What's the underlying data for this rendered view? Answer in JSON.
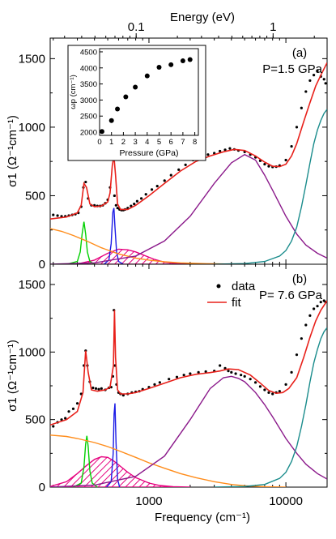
{
  "chart_data": [
    {
      "type": "line",
      "panel_label": "(a)",
      "condition": "P=1.5 GPa",
      "top_axis": {
        "label": "Energy (eV)",
        "scale": "log",
        "ticks": [
          {
            "v": 0.1,
            "label": "0.1"
          },
          {
            "v": 1,
            "label": "1"
          }
        ]
      },
      "xlabel": "",
      "xscale": "log",
      "xlim": [
        190,
        20000
      ],
      "ylabel": "σ1 (Ω⁻¹cm⁻¹)",
      "ylim": [
        0,
        1650
      ],
      "yticks": [
        {
          "v": 0,
          "label": "0"
        },
        {
          "v": 500,
          "label": "500"
        },
        {
          "v": 1000,
          "label": "1000"
        },
        {
          "v": 1500,
          "label": "1500"
        }
      ],
      "data_points": {
        "x": [
          200,
          215,
          230,
          245,
          260,
          275,
          290,
          305,
          320,
          332,
          345,
          360,
          380,
          400,
          420,
          440,
          460,
          480,
          500,
          520,
          540,
          560,
          575,
          590,
          610,
          630,
          650,
          670,
          700,
          740,
          780,
          820,
          880,
          950,
          1050,
          1150,
          1300,
          1450,
          1650,
          1850,
          2100,
          2400,
          2700,
          3000,
          3300,
          3600,
          3900,
          4200,
          4500,
          5000,
          5500,
          6000,
          6500,
          7000,
          7500,
          8000,
          8500,
          9000,
          10000,
          11000,
          12000,
          13000,
          14000,
          15000,
          16000,
          17000,
          18000,
          19000,
          19500
        ],
        "y": [
          360,
          355,
          350,
          350,
          355,
          360,
          365,
          375,
          420,
          560,
          600,
          480,
          430,
          430,
          425,
          425,
          430,
          445,
          470,
          560,
          780,
          500,
          430,
          410,
          400,
          395,
          395,
          400,
          410,
          425,
          440,
          460,
          480,
          510,
          545,
          570,
          610,
          650,
          690,
          725,
          760,
          780,
          800,
          810,
          825,
          835,
          845,
          838,
          830,
          820,
          800,
          780,
          755,
          730,
          715,
          710,
          712,
          720,
          760,
          860,
          1000,
          1140,
          1260,
          1340,
          1380,
          1410,
          1370,
          1350,
          1320
        ]
      },
      "series": [
        {
          "name": "fit",
          "color": "#e8201a",
          "x": [
            190,
            250,
            300,
            320,
            335,
            350,
            370,
            400,
            450,
            500,
            520,
            540,
            555,
            570,
            590,
            620,
            700,
            800,
            1000,
            1300,
            1700,
            2200,
            2800,
            3500,
            4200,
            5000,
            6000,
            7000,
            8000,
            9000,
            10000,
            11000,
            12000,
            13500,
            15000,
            16500,
            18000,
            20000
          ],
          "y": [
            330,
            345,
            375,
            430,
            590,
            560,
            440,
            420,
            425,
            455,
            520,
            720,
            790,
            650,
            440,
            400,
            400,
            430,
            500,
            590,
            680,
            750,
            790,
            820,
            838,
            830,
            790,
            745,
            715,
            712,
            730,
            790,
            880,
            1040,
            1180,
            1300,
            1380,
            1470
          ]
        },
        {
          "name": "",
          "color": "#ff8c1a",
          "x": [
            190,
            230,
            280,
            350,
            450,
            600,
            800,
            1000,
            1300,
            1700,
            2200,
            3000,
            4000,
            5000
          ],
          "y": [
            260,
            240,
            210,
            170,
            120,
            75,
            45,
            30,
            18,
            10,
            6,
            3,
            1,
            0
          ]
        },
        {
          "name": "",
          "color": "#00d000",
          "x": [
            250,
            300,
            315,
            325,
            335,
            345,
            355,
            370,
            400
          ],
          "y": [
            0,
            20,
            90,
            220,
            310,
            220,
            90,
            20,
            0
          ]
        },
        {
          "name": "",
          "color": "#1a1ae6",
          "x": [
            470,
            510,
            530,
            545,
            555,
            565,
            580,
            600,
            650
          ],
          "y": [
            0,
            30,
            150,
            380,
            410,
            270,
            90,
            20,
            0
          ]
        },
        {
          "name": "",
          "color": "#e6007e",
          "x": [
            300,
            400,
            500,
            600,
            700,
            800,
            950,
            1100,
            1300,
            1600,
            2000
          ],
          "y": [
            2,
            30,
            80,
            110,
            105,
            90,
            60,
            35,
            15,
            5,
            0
          ]
        },
        {
          "name": "",
          "color": "#8b1a8b",
          "x": [
            190,
            400,
            800,
            1300,
            2000,
            3000,
            4000,
            5000,
            6000,
            7000,
            8000,
            10000,
            12000,
            14000,
            17000,
            20000
          ],
          "y": [
            0,
            10,
            60,
            170,
            350,
            590,
            740,
            800,
            760,
            650,
            540,
            350,
            220,
            140,
            80,
            45
          ]
        },
        {
          "name": "",
          "color": "#1a8c8c",
          "x": [
            3000,
            5000,
            7000,
            9000,
            10000,
            11000,
            12000,
            13000,
            14000,
            15000,
            16000,
            17000,
            18000,
            19000,
            20000
          ],
          "y": [
            0,
            5,
            20,
            60,
            100,
            170,
            270,
            420,
            580,
            740,
            880,
            980,
            1050,
            1100,
            1130
          ]
        }
      ],
      "inset": {
        "xlabel": "Pressure (GPa)",
        "ylabel": "ωp (cm⁻¹)",
        "xlim": [
          0,
          8.3
        ],
        "ylim": [
          1900,
          4600
        ],
        "xticks": [
          0,
          1,
          2,
          3,
          4,
          5,
          6,
          7,
          8
        ],
        "yticks": [
          2000,
          2500,
          3000,
          3500,
          4000,
          4500
        ],
        "x": [
          0.2,
          1.0,
          1.5,
          2.2,
          3.0,
          4.0,
          5.0,
          6.0,
          7.0,
          7.6
        ],
        "y": [
          2020,
          2360,
          2720,
          3100,
          3400,
          3750,
          4020,
          4100,
          4220,
          4260
        ]
      }
    },
    {
      "type": "line",
      "panel_label": "(b)",
      "condition": "P= 7.6 GPa",
      "xlabel": "Frequency (cm⁻¹)",
      "xscale": "log",
      "xlim": [
        190,
        20000
      ],
      "xticks": [
        {
          "v": 1000,
          "label": "1000"
        },
        {
          "v": 10000,
          "label": "10000"
        }
      ],
      "ylabel": "σ1 (Ω⁻¹cm⁻¹)",
      "ylim": [
        0,
        1650
      ],
      "yticks": [
        {
          "v": 0,
          "label": "0"
        },
        {
          "v": 500,
          "label": "500"
        },
        {
          "v": 1000,
          "label": "1000"
        },
        {
          "v": 1500,
          "label": "1500"
        }
      ],
      "legend": {
        "position": "top-center",
        "entries": [
          "data",
          "fit"
        ]
      },
      "data_points": {
        "x": [
          200,
          215,
          230,
          245,
          260,
          280,
          300,
          320,
          335,
          345,
          355,
          370,
          390,
          410,
          430,
          450,
          480,
          510,
          530,
          545,
          555,
          565,
          580,
          600,
          620,
          650,
          700,
          750,
          800,
          850,
          900,
          1000,
          1100,
          1200,
          1400,
          1600,
          1800,
          2000,
          2300,
          2600,
          3000,
          3300,
          3600,
          3800,
          4000,
          4300,
          4700,
          5000,
          5500,
          6000,
          6500,
          7000,
          7500,
          8000,
          8500,
          9000,
          10000,
          11000,
          12000,
          13000,
          14000,
          15000,
          16000,
          17000,
          18000,
          19000,
          19500
        ],
        "y": [
          450,
          480,
          500,
          510,
          560,
          580,
          620,
          690,
          900,
          1010,
          900,
          780,
          735,
          730,
          725,
          730,
          720,
          735,
          740,
          820,
          1310,
          900,
          760,
          700,
          690,
          680,
          690,
          700,
          705,
          710,
          725,
          740,
          760,
          775,
          800,
          815,
          830,
          840,
          850,
          855,
          860,
          900,
          880,
          860,
          850,
          840,
          830,
          820,
          800,
          775,
          745,
          720,
          700,
          690,
          700,
          710,
          760,
          850,
          980,
          1100,
          1200,
          1270,
          1320,
          1340,
          1370,
          1380,
          1370
        ]
      },
      "series": [
        {
          "name": "fit",
          "color": "#e8201a",
          "x": [
            190,
            250,
            300,
            330,
            345,
            360,
            380,
            420,
            480,
            520,
            550,
            560,
            570,
            590,
            620,
            700,
            800,
            1000,
            1300,
            1700,
            2200,
            2800,
            3300,
            3800,
            4500,
            5500,
            6500,
            7500,
            8500,
            9500,
            10500,
            12000,
            13500,
            15000,
            16500,
            18000,
            20000
          ],
          "y": [
            460,
            500,
            560,
            700,
            1010,
            850,
            720,
            710,
            720,
            740,
            900,
            1310,
            960,
            720,
            690,
            690,
            700,
            730,
            770,
            810,
            835,
            848,
            860,
            875,
            870,
            830,
            770,
            715,
            695,
            700,
            730,
            810,
            960,
            1110,
            1230,
            1310,
            1380
          ]
        },
        {
          "name": "",
          "color": "#ff8c1a",
          "x": [
            190,
            250,
            300,
            400,
            500,
            600,
            800,
            1000,
            1300,
            1700,
            2200,
            3000,
            4000,
            5000,
            7000,
            10000
          ],
          "y": [
            385,
            375,
            360,
            330,
            300,
            270,
            220,
            180,
            140,
            100,
            70,
            40,
            20,
            10,
            3,
            0
          ]
        },
        {
          "name": "",
          "color": "#00d000",
          "x": [
            280,
            320,
            335,
            345,
            352,
            360,
            370,
            385,
            420
          ],
          "y": [
            0,
            30,
            150,
            320,
            380,
            300,
            120,
            30,
            0
          ]
        },
        {
          "name": "",
          "color": "#1a1ae6",
          "x": [
            490,
            530,
            548,
            556,
            565,
            575,
            590,
            610
          ],
          "y": [
            0,
            40,
            250,
            540,
            620,
            330,
            60,
            0
          ]
        },
        {
          "name": "",
          "color": "#e6007e",
          "x": [
            190,
            250,
            300,
            350,
            400,
            450,
            500,
            550,
            600,
            700,
            800,
            1000,
            1200,
            1500,
            2000
          ],
          "y": [
            5,
            40,
            100,
            160,
            205,
            225,
            220,
            195,
            165,
            110,
            70,
            30,
            12,
            3,
            0
          ]
        },
        {
          "name": "",
          "color": "#8b1a8b",
          "x": [
            190,
            400,
            800,
            1300,
            2000,
            2800,
            3500,
            4000,
            4500,
            5000,
            6000,
            7000,
            8000,
            10000,
            12000,
            14000,
            17000,
            20000
          ],
          "y": [
            0,
            15,
            80,
            230,
            500,
            730,
            810,
            820,
            805,
            780,
            700,
            610,
            520,
            360,
            250,
            170,
            100,
            60
          ]
        },
        {
          "name": "",
          "color": "#1a8c8c",
          "x": [
            3000,
            5000,
            7000,
            9000,
            10000,
            11000,
            12000,
            13000,
            14000,
            15000,
            16000,
            17000,
            18000,
            19000,
            20000
          ],
          "y": [
            0,
            5,
            20,
            65,
            110,
            190,
            300,
            450,
            610,
            780,
            920,
            1020,
            1100,
            1150,
            1180
          ]
        }
      ]
    }
  ]
}
